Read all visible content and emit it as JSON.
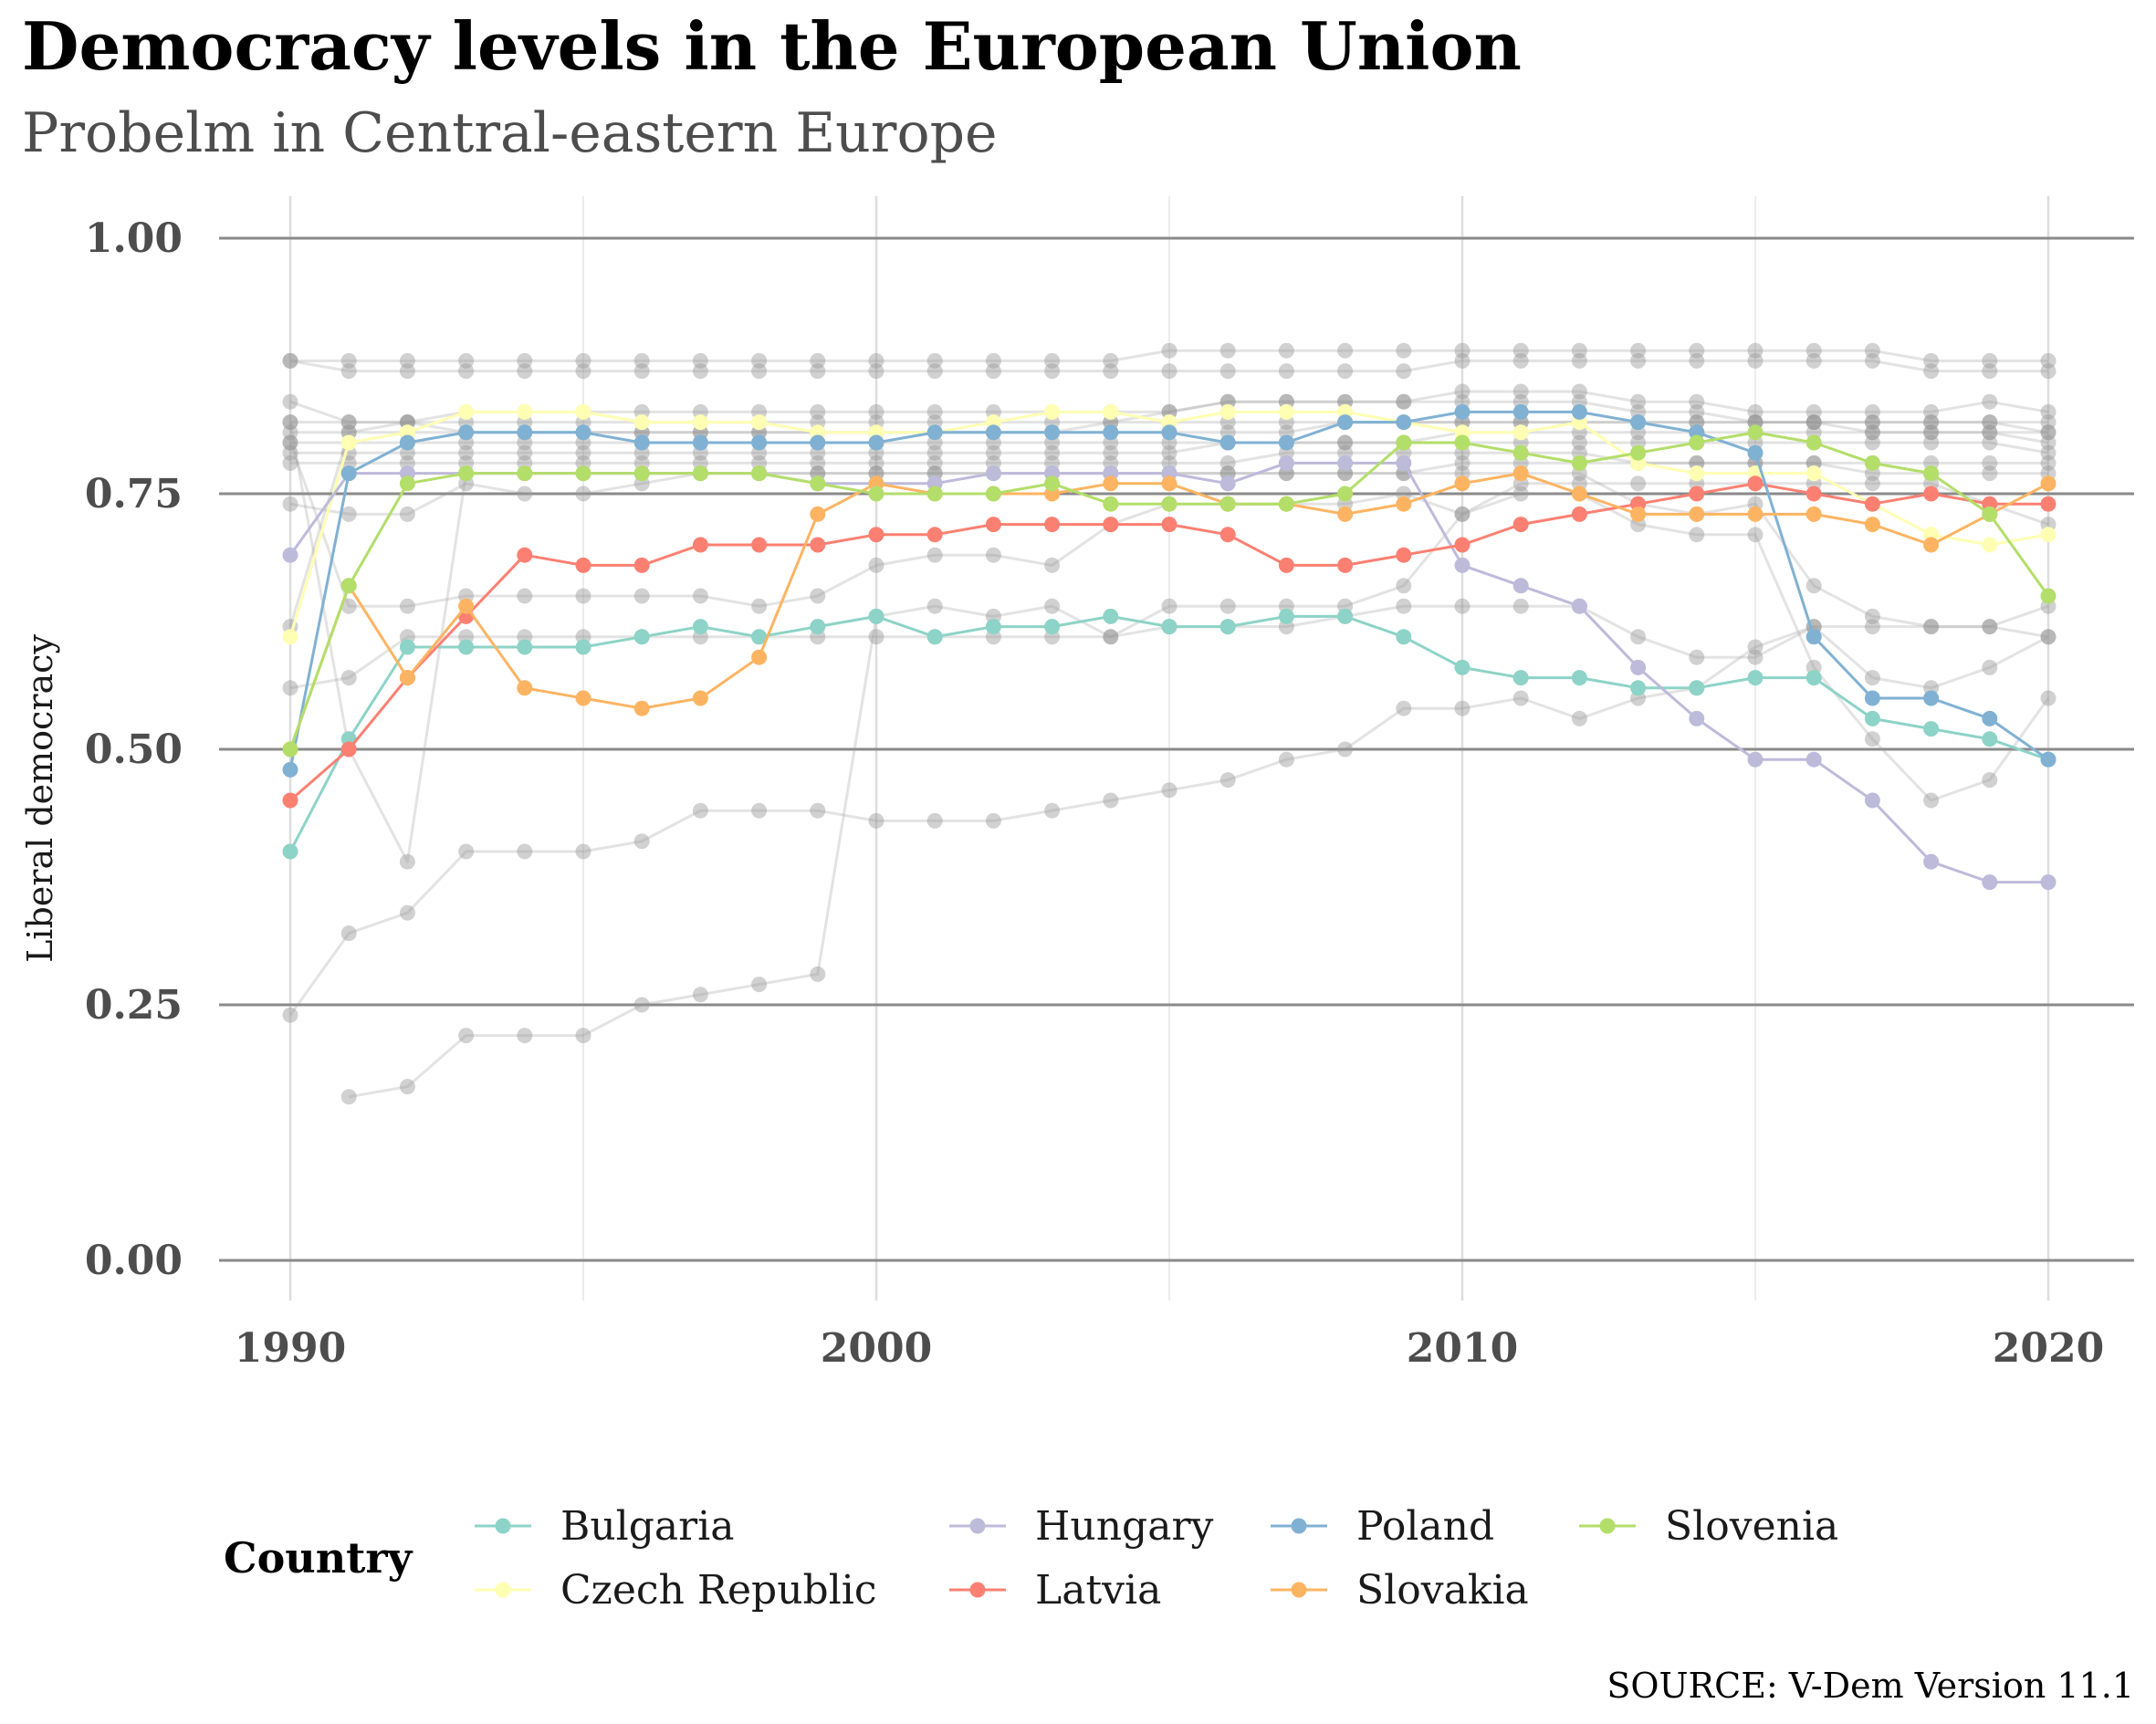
{
  "title": "Democracy levels in the European Union",
  "subtitle": "Probelm in Central-eastern Europe",
  "caption": "SOURCE: V-Dem Version 11.1",
  "chart_data": {
    "type": "line",
    "ylabel": "Liberal democracy",
    "xlabel": "",
    "xlim": [
      1990,
      2020
    ],
    "ylim": [
      0,
      1
    ],
    "x_ticks": [
      1990,
      2000,
      2010,
      2020
    ],
    "y_ticks": [
      "0.00",
      "0.25",
      "0.50",
      "0.75",
      "1.00"
    ],
    "grid": true,
    "legend": {
      "title": "Country",
      "placement": "bottom",
      "entries": [
        "Bulgaria",
        "Czech Republic",
        "Hungary",
        "Latvia",
        "Poland",
        "Slovakia",
        "Slovenia"
      ]
    },
    "years": [
      1990,
      1991,
      1992,
      1993,
      1994,
      1995,
      1996,
      1997,
      1998,
      1999,
      2000,
      2001,
      2002,
      2003,
      2004,
      2005,
      2006,
      2007,
      2008,
      2009,
      2010,
      2011,
      2012,
      2013,
      2014,
      2015,
      2016,
      2017,
      2018,
      2019,
      2020
    ],
    "series": [
      {
        "name": "Bulgaria",
        "color": "#8dd3c7",
        "values": [
          0.4,
          0.51,
          0.6,
          0.6,
          0.6,
          0.6,
          0.61,
          0.62,
          0.61,
          0.62,
          0.63,
          0.61,
          0.62,
          0.62,
          0.63,
          0.62,
          0.62,
          0.63,
          0.63,
          0.61,
          0.58,
          0.57,
          0.57,
          0.56,
          0.56,
          0.57,
          0.57,
          0.53,
          0.52,
          0.51,
          0.49
        ]
      },
      {
        "name": "Czech Republic",
        "color": "#ffffb3",
        "values": [
          0.61,
          0.8,
          0.81,
          0.83,
          0.83,
          0.83,
          0.82,
          0.82,
          0.82,
          0.81,
          0.81,
          0.81,
          0.82,
          0.83,
          0.83,
          0.82,
          0.83,
          0.83,
          0.83,
          0.82,
          0.81,
          0.81,
          0.82,
          0.78,
          0.77,
          0.77,
          0.77,
          0.74,
          0.71,
          0.7,
          0.71
        ]
      },
      {
        "name": "Hungary",
        "color": "#bebada",
        "values": [
          0.69,
          0.77,
          0.77,
          0.77,
          0.77,
          0.77,
          0.77,
          0.77,
          0.77,
          0.76,
          0.76,
          0.76,
          0.77,
          0.77,
          0.77,
          0.77,
          0.76,
          0.78,
          0.78,
          0.78,
          0.68,
          0.66,
          0.64,
          0.58,
          0.53,
          0.49,
          0.49,
          0.45,
          0.39,
          0.37,
          0.37
        ]
      },
      {
        "name": "Latvia",
        "color": "#fb8072",
        "values": [
          0.45,
          0.5,
          0.57,
          0.63,
          0.69,
          0.68,
          0.68,
          0.7,
          0.7,
          0.7,
          0.71,
          0.71,
          0.72,
          0.72,
          0.72,
          0.72,
          0.71,
          0.68,
          0.68,
          0.69,
          0.7,
          0.72,
          0.73,
          0.74,
          0.75,
          0.76,
          0.75,
          0.74,
          0.75,
          0.74,
          0.74
        ]
      },
      {
        "name": "Poland",
        "color": "#80b1d3",
        "values": [
          0.48,
          0.77,
          0.8,
          0.81,
          0.81,
          0.81,
          0.8,
          0.8,
          0.8,
          0.8,
          0.8,
          0.81,
          0.81,
          0.81,
          0.81,
          0.81,
          0.8,
          0.8,
          0.82,
          0.82,
          0.83,
          0.83,
          0.83,
          0.82,
          0.81,
          0.79,
          0.61,
          0.55,
          0.55,
          0.53,
          0.49
        ]
      },
      {
        "name": "Slovakia",
        "color": "#fdb462",
        "values": [
          0.5,
          0.66,
          0.57,
          0.64,
          0.56,
          0.55,
          0.54,
          0.55,
          0.59,
          0.73,
          0.76,
          0.75,
          0.75,
          0.75,
          0.76,
          0.76,
          0.74,
          0.74,
          0.73,
          0.74,
          0.76,
          0.77,
          0.75,
          0.73,
          0.73,
          0.73,
          0.73,
          0.72,
          0.7,
          0.73,
          0.76
        ]
      },
      {
        "name": "Slovenia",
        "color": "#b3de69",
        "values": [
          0.5,
          0.66,
          0.76,
          0.77,
          0.77,
          0.77,
          0.77,
          0.77,
          0.77,
          0.76,
          0.75,
          0.75,
          0.75,
          0.76,
          0.74,
          0.74,
          0.74,
          0.74,
          0.75,
          0.8,
          0.8,
          0.79,
          0.78,
          0.79,
          0.8,
          0.81,
          0.8,
          0.78,
          0.77,
          0.73,
          0.65
        ]
      }
    ],
    "background_series_color": "#999999",
    "background_series": [
      [
        0.88,
        0.88,
        0.88,
        0.88,
        0.88,
        0.88,
        0.88,
        0.88,
        0.88,
        0.88,
        0.88,
        0.88,
        0.88,
        0.88,
        0.88,
        0.89,
        0.89,
        0.89,
        0.89,
        0.89,
        0.89,
        0.89,
        0.89,
        0.89,
        0.89,
        0.89,
        0.89,
        0.89,
        0.88,
        0.88,
        0.88
      ],
      [
        0.88,
        0.87,
        0.87,
        0.87,
        0.87,
        0.87,
        0.87,
        0.87,
        0.87,
        0.87,
        0.87,
        0.87,
        0.87,
        0.87,
        0.87,
        0.87,
        0.87,
        0.87,
        0.87,
        0.87,
        0.88,
        0.88,
        0.88,
        0.88,
        0.88,
        0.88,
        0.88,
        0.88,
        0.87,
        0.87,
        0.87
      ],
      [
        0.84,
        0.82,
        0.82,
        0.82,
        0.82,
        0.82,
        0.82,
        0.82,
        0.82,
        0.82,
        0.82,
        0.82,
        0.82,
        0.82,
        0.82,
        0.83,
        0.84,
        0.84,
        0.84,
        0.84,
        0.85,
        0.85,
        0.85,
        0.84,
        0.84,
        0.83,
        0.83,
        0.83,
        0.83,
        0.84,
        0.83
      ],
      [
        0.82,
        0.82,
        0.82,
        0.81,
        0.81,
        0.81,
        0.81,
        0.81,
        0.81,
        0.81,
        0.81,
        0.81,
        0.81,
        0.81,
        0.82,
        0.82,
        0.82,
        0.82,
        0.82,
        0.82,
        0.82,
        0.82,
        0.82,
        0.82,
        0.82,
        0.82,
        0.82,
        0.82,
        0.82,
        0.82,
        0.82
      ],
      [
        0.81,
        0.81,
        0.81,
        0.81,
        0.81,
        0.81,
        0.81,
        0.81,
        0.81,
        0.81,
        0.81,
        0.81,
        0.81,
        0.81,
        0.81,
        0.81,
        0.81,
        0.81,
        0.82,
        0.82,
        0.82,
        0.82,
        0.82,
        0.82,
        0.82,
        0.82,
        0.82,
        0.82,
        0.82,
        0.82,
        0.81
      ],
      [
        0.8,
        0.8,
        0.8,
        0.8,
        0.8,
        0.8,
        0.8,
        0.8,
        0.8,
        0.8,
        0.8,
        0.8,
        0.8,
        0.8,
        0.8,
        0.8,
        0.8,
        0.8,
        0.8,
        0.8,
        0.81,
        0.81,
        0.81,
        0.81,
        0.81,
        0.81,
        0.81,
        0.81,
        0.81,
        0.81,
        0.8
      ],
      [
        0.79,
        0.79,
        0.79,
        0.79,
        0.79,
        0.79,
        0.79,
        0.79,
        0.79,
        0.79,
        0.79,
        0.79,
        0.79,
        0.79,
        0.79,
        0.79,
        0.8,
        0.8,
        0.8,
        0.8,
        0.8,
        0.8,
        0.8,
        0.8,
        0.8,
        0.8,
        0.8,
        0.8,
        0.8,
        0.8,
        0.79
      ],
      [
        0.78,
        0.78,
        0.78,
        0.78,
        0.78,
        0.78,
        0.78,
        0.78,
        0.78,
        0.78,
        0.78,
        0.78,
        0.78,
        0.78,
        0.78,
        0.78,
        0.78,
        0.79,
        0.79,
        0.79,
        0.79,
        0.79,
        0.79,
        0.78,
        0.78,
        0.78,
        0.78,
        0.78,
        0.78,
        0.78,
        0.78
      ],
      [
        0.74,
        0.73,
        0.73,
        0.76,
        0.75,
        0.75,
        0.76,
        0.77,
        0.77,
        0.77,
        0.77,
        0.77,
        0.77,
        0.77,
        0.77,
        0.77,
        0.77,
        0.77,
        0.77,
        0.77,
        0.78,
        0.78,
        0.78,
        0.78,
        0.78,
        0.78,
        0.78,
        0.77,
        0.77,
        0.77,
        0.77
      ],
      [
        0.62,
        0.81,
        0.82,
        0.83,
        0.83,
        0.83,
        0.83,
        0.83,
        0.83,
        0.83,
        0.83,
        0.83,
        0.83,
        0.83,
        0.83,
        0.83,
        0.84,
        0.84,
        0.84,
        0.84,
        0.84,
        0.84,
        0.84,
        0.83,
        0.83,
        0.82,
        0.82,
        0.81,
        0.81,
        0.81,
        0.81
      ],
      [
        0.56,
        0.57,
        0.61,
        0.61,
        0.61,
        0.61,
        0.61,
        0.61,
        0.61,
        0.61,
        0.61,
        0.61,
        0.61,
        0.61,
        0.61,
        0.62,
        0.62,
        0.62,
        0.63,
        0.64,
        0.64,
        0.64,
        0.64,
        0.61,
        0.59,
        0.59,
        0.62,
        0.62,
        0.62,
        0.62,
        0.64
      ],
      [
        0.82,
        0.5,
        0.39,
        0.77,
        0.77,
        0.77,
        0.77,
        0.77,
        0.77,
        0.77,
        0.77,
        0.77,
        0.77,
        0.77,
        0.77,
        0.77,
        0.77,
        0.77,
        0.77,
        0.77,
        0.77,
        0.77,
        0.77,
        0.74,
        0.73,
        0.74,
        0.66,
        0.63,
        0.62,
        0.62,
        0.61
      ],
      [
        0.8,
        0.64,
        0.64,
        0.65,
        0.65,
        0.65,
        0.65,
        0.65,
        0.64,
        0.65,
        0.68,
        0.69,
        0.69,
        0.68,
        0.72,
        0.74,
        0.74,
        0.74,
        0.74,
        0.75,
        0.73,
        0.75,
        0.75,
        0.72,
        0.71,
        0.71,
        0.58,
        0.51,
        0.45,
        0.47,
        0.55
      ],
      [
        0.24,
        0.32,
        0.34,
        0.4,
        0.4,
        0.4,
        0.41,
        0.44,
        0.44,
        0.44,
        0.43,
        0.43,
        0.43,
        0.44,
        0.45,
        0.46,
        0.47,
        0.49,
        0.5,
        0.54,
        0.54,
        0.55,
        0.53,
        0.55,
        0.56,
        0.6,
        0.62,
        0.57,
        0.56,
        0.58,
        0.61
      ],
      [
        null,
        0.16,
        0.17,
        0.22,
        0.22,
        0.22,
        0.25,
        0.26,
        0.27,
        0.28,
        0.63,
        0.64,
        0.63,
        0.64,
        0.61,
        0.64,
        0.64,
        0.64,
        0.64,
        0.66,
        0.73,
        0.76,
        0.76,
        0.76,
        0.76,
        0.76,
        0.76,
        0.76,
        0.76,
        0.74,
        0.72
      ]
    ]
  }
}
